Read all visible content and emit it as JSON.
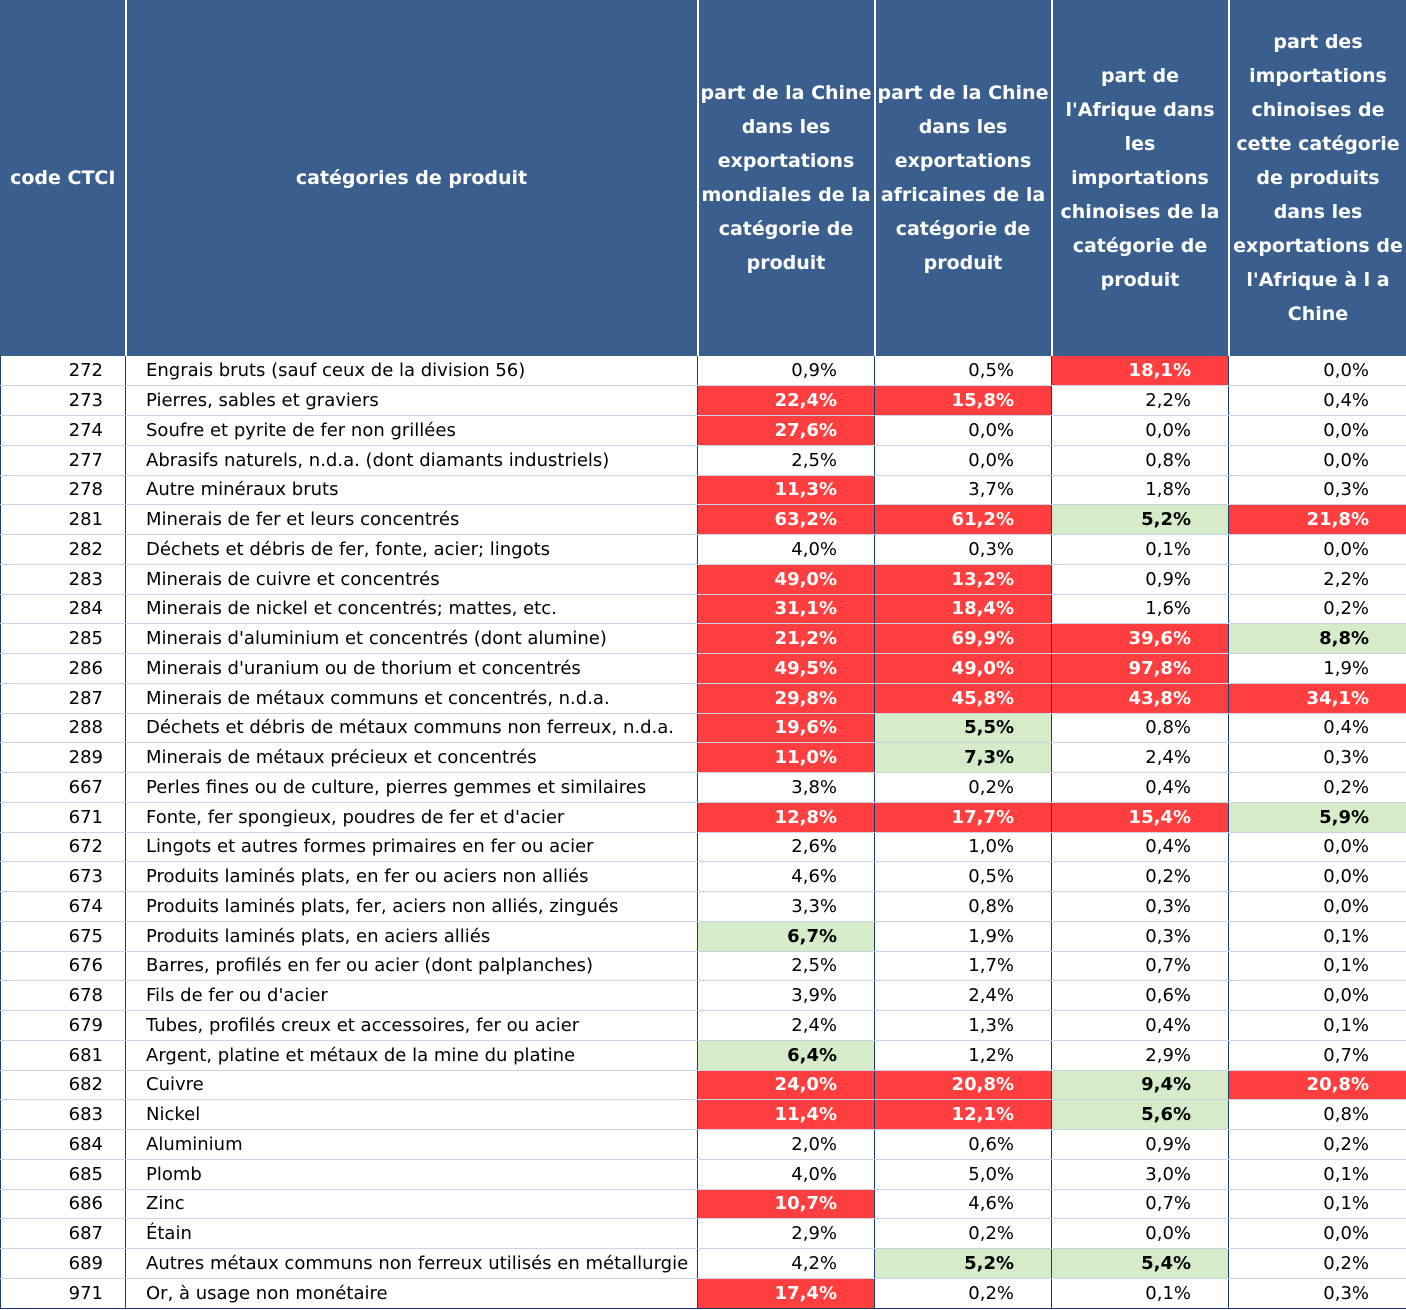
{
  "headers": [
    "code CTCI",
    "catégories de produit",
    "part de la Chine dans les exportations mondiales de la catégorie de produit",
    "part de la Chine dans les exportations africaines de la catégorie de produit",
    "part de l'Afrique dans les importations chinoises de la catégorie de produit",
    "part des importations chinoises de cette catégorie de produits dans les exportations de l'Afrique à l a Chine"
  ],
  "highlight_colors": {
    "red": "#ff3f3f",
    "green": "#d6ecc9",
    "header": "#3a5f8f"
  },
  "rows": [
    {
      "code": "272",
      "cat": "Engrais bruts (sauf ceux de la division 56)",
      "v": [
        "0,9%",
        "0,5%",
        "18,1%",
        "0,0%"
      ],
      "h": [
        "",
        "",
        "red",
        ""
      ]
    },
    {
      "code": "273",
      "cat": "Pierres, sables et graviers",
      "v": [
        "22,4%",
        "15,8%",
        "2,2%",
        "0,4%"
      ],
      "h": [
        "red",
        "red",
        "",
        ""
      ]
    },
    {
      "code": "274",
      "cat": "Soufre et pyrite de fer non grillées",
      "v": [
        "27,6%",
        "0,0%",
        "0,0%",
        "0,0%"
      ],
      "h": [
        "red",
        "",
        "",
        ""
      ]
    },
    {
      "code": "277",
      "cat": "Abrasifs naturels, n.d.a. (dont diamants industriels)",
      "v": [
        "2,5%",
        "0,0%",
        "0,8%",
        "0,0%"
      ],
      "h": [
        "",
        "",
        "",
        ""
      ]
    },
    {
      "code": "278",
      "cat": "Autre minéraux bruts",
      "v": [
        "11,3%",
        "3,7%",
        "1,8%",
        "0,3%"
      ],
      "h": [
        "red",
        "",
        "",
        ""
      ]
    },
    {
      "code": "281",
      "cat": "Minerais de fer et leurs concentrés",
      "v": [
        "63,2%",
        "61,2%",
        "5,2%",
        "21,8%"
      ],
      "h": [
        "red",
        "red",
        "green",
        "red"
      ]
    },
    {
      "code": "282",
      "cat": "Déchets et débris de fer, fonte, acier; lingots",
      "v": [
        "4,0%",
        "0,3%",
        "0,1%",
        "0,0%"
      ],
      "h": [
        "",
        "",
        "",
        ""
      ]
    },
    {
      "code": "283",
      "cat": "Minerais de cuivre et concentrés",
      "v": [
        "49,0%",
        "13,2%",
        "0,9%",
        "2,2%"
      ],
      "h": [
        "red",
        "red",
        "",
        ""
      ]
    },
    {
      "code": "284",
      "cat": "Minerais de nickel et concentrés; mattes, etc.",
      "v": [
        "31,1%",
        "18,4%",
        "1,6%",
        "0,2%"
      ],
      "h": [
        "red",
        "red",
        "",
        ""
      ]
    },
    {
      "code": "285",
      "cat": "Minerais d'aluminium et concentrés (dont alumine)",
      "v": [
        "21,2%",
        "69,9%",
        "39,6%",
        "8,8%"
      ],
      "h": [
        "red",
        "red",
        "red",
        "green"
      ]
    },
    {
      "code": "286",
      "cat": "Minerais d'uranium ou de thorium et concentrés",
      "v": [
        "49,5%",
        "49,0%",
        "97,8%",
        "1,9%"
      ],
      "h": [
        "red",
        "red",
        "red",
        ""
      ]
    },
    {
      "code": "287",
      "cat": "Minerais de métaux communs et concentrés, n.d.a.",
      "v": [
        "29,8%",
        "45,8%",
        "43,8%",
        "34,1%"
      ],
      "h": [
        "red",
        "red",
        "red",
        "red"
      ]
    },
    {
      "code": "288",
      "cat": "Déchets et débris de métaux communs non ferreux, n.d.a.",
      "v": [
        "19,6%",
        "5,5%",
        "0,8%",
        "0,4%"
      ],
      "h": [
        "red",
        "green",
        "",
        ""
      ]
    },
    {
      "code": "289",
      "cat": "Minerais de métaux précieux et concentrés",
      "v": [
        "11,0%",
        "7,3%",
        "2,4%",
        "0,3%"
      ],
      "h": [
        "red",
        "green",
        "",
        ""
      ]
    },
    {
      "code": "667",
      "cat": "Perles fines ou de culture, pierres gemmes et similaires",
      "v": [
        "3,8%",
        "0,2%",
        "0,4%",
        "0,2%"
      ],
      "h": [
        "",
        "",
        "",
        ""
      ]
    },
    {
      "code": "671",
      "cat": "Fonte, fer spongieux, poudres de fer et d'acier",
      "v": [
        "12,8%",
        "17,7%",
        "15,4%",
        "5,9%"
      ],
      "h": [
        "red",
        "red",
        "red",
        "green"
      ]
    },
    {
      "code": "672",
      "cat": "Lingots et autres formes primaires en fer ou acier",
      "v": [
        "2,6%",
        "1,0%",
        "0,4%",
        "0,0%"
      ],
      "h": [
        "",
        "",
        "",
        ""
      ]
    },
    {
      "code": "673",
      "cat": "Produits laminés plats, en fer ou aciers non alliés",
      "v": [
        "4,6%",
        "0,5%",
        "0,2%",
        "0,0%"
      ],
      "h": [
        "",
        "",
        "",
        ""
      ]
    },
    {
      "code": "674",
      "cat": "Produits laminés plats, fer, aciers non alliés, zingués",
      "v": [
        "3,3%",
        "0,8%",
        "0,3%",
        "0,0%"
      ],
      "h": [
        "",
        "",
        "",
        ""
      ]
    },
    {
      "code": "675",
      "cat": "Produits laminés plats, en aciers alliés",
      "v": [
        "6,7%",
        "1,9%",
        "0,3%",
        "0,1%"
      ],
      "h": [
        "green",
        "",
        "",
        ""
      ]
    },
    {
      "code": "676",
      "cat": "Barres, profilés en fer ou acier (dont palplanches)",
      "v": [
        "2,5%",
        "1,7%",
        "0,7%",
        "0,1%"
      ],
      "h": [
        "",
        "",
        "",
        ""
      ]
    },
    {
      "code": "678",
      "cat": "Fils de fer ou d'acier",
      "v": [
        "3,9%",
        "2,4%",
        "0,6%",
        "0,0%"
      ],
      "h": [
        "",
        "",
        "",
        ""
      ]
    },
    {
      "code": "679",
      "cat": "Tubes, profilés creux et accessoires, fer ou acier",
      "v": [
        "2,4%",
        "1,3%",
        "0,4%",
        "0,1%"
      ],
      "h": [
        "",
        "",
        "",
        ""
      ]
    },
    {
      "code": "681",
      "cat": "Argent, platine et métaux de la mine du platine",
      "v": [
        "6,4%",
        "1,2%",
        "2,9%",
        "0,7%"
      ],
      "h": [
        "green",
        "",
        "",
        ""
      ]
    },
    {
      "code": "682",
      "cat": "Cuivre",
      "v": [
        "24,0%",
        "20,8%",
        "9,4%",
        "20,8%"
      ],
      "h": [
        "red",
        "red",
        "green",
        "red"
      ]
    },
    {
      "code": "683",
      "cat": "Nickel",
      "v": [
        "11,4%",
        "12,1%",
        "5,6%",
        "0,8%"
      ],
      "h": [
        "red",
        "red",
        "green",
        ""
      ]
    },
    {
      "code": "684",
      "cat": "Aluminium",
      "v": [
        "2,0%",
        "0,6%",
        "0,9%",
        "0,2%"
      ],
      "h": [
        "",
        "",
        "",
        ""
      ]
    },
    {
      "code": "685",
      "cat": "Plomb",
      "v": [
        "4,0%",
        "5,0%",
        "3,0%",
        "0,1%"
      ],
      "h": [
        "",
        "",
        "",
        ""
      ]
    },
    {
      "code": "686",
      "cat": "Zinc",
      "v": [
        "10,7%",
        "4,6%",
        "0,7%",
        "0,1%"
      ],
      "h": [
        "red",
        "",
        "",
        ""
      ]
    },
    {
      "code": "687",
      "cat": "Étain",
      "v": [
        "2,9%",
        "0,2%",
        "0,0%",
        "0,0%"
      ],
      "h": [
        "",
        "",
        "",
        ""
      ]
    },
    {
      "code": "689",
      "cat": "Autres métaux communs non ferreux utilisés en métallurgie",
      "v": [
        "4,2%",
        "5,2%",
        "5,4%",
        "0,2%"
      ],
      "h": [
        "",
        "green",
        "green",
        ""
      ]
    },
    {
      "code": "971",
      "cat": "Or, à usage non monétaire",
      "v": [
        "17,4%",
        "0,2%",
        "0,1%",
        "0,3%"
      ],
      "h": [
        "red",
        "",
        "",
        ""
      ]
    }
  ]
}
